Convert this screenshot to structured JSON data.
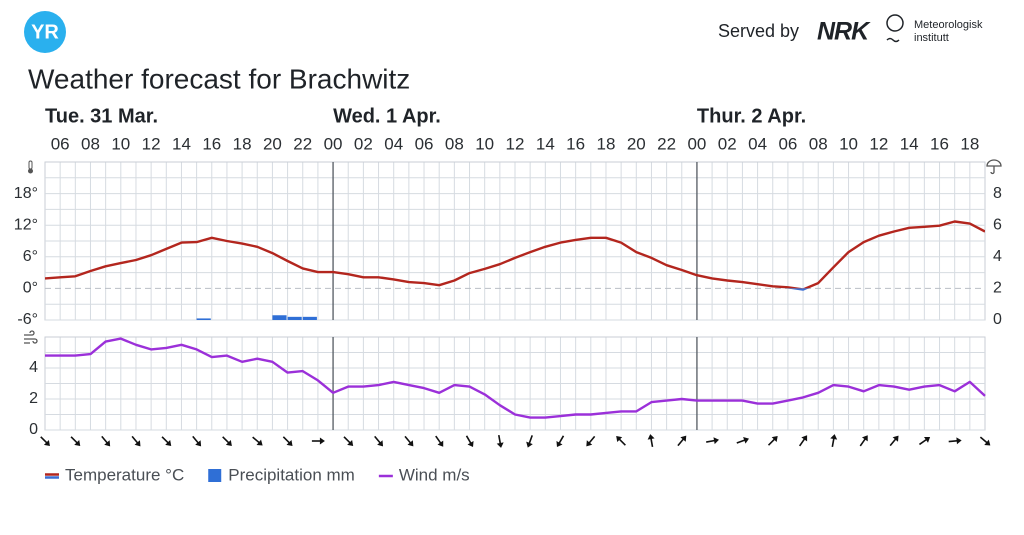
{
  "header": {
    "logo": "YR",
    "served_by": "Served by",
    "partner": "NRK",
    "institute": [
      "Meteorologisk",
      "institutt"
    ]
  },
  "chart_data": [
    {
      "type": "line",
      "title": "Weather forecast for Brachwitz",
      "day_labels": [
        "Tue. 31 Mar.",
        "Wed. 1 Apr.",
        "Thur. 2 Apr."
      ],
      "categories": [
        null,
        "06",
        null,
        "08",
        null,
        "10",
        null,
        "12",
        null,
        "14",
        null,
        "16",
        null,
        "18",
        null,
        "20",
        null,
        "22",
        null,
        "00",
        null,
        "02",
        null,
        "04",
        null,
        "06",
        null,
        "08",
        null,
        "10",
        null,
        "12",
        null,
        "14",
        null,
        "16",
        null,
        "18",
        null,
        "20",
        null,
        "22",
        null,
        "00",
        null,
        "02",
        null,
        "04",
        null,
        "06",
        null,
        "08",
        null,
        "10",
        null,
        "12",
        null,
        "14",
        null,
        "16",
        null,
        "18",
        null
      ],
      "series": [
        {
          "name": "Temperature °C",
          "type": "line",
          "color": "#b3261e",
          "color_below_zero": "#3b6fd4",
          "values": [
            1.9,
            2.1,
            2.3,
            3.3,
            4.2,
            4.8,
            5.4,
            6.3,
            7.5,
            8.7,
            8.8,
            9.6,
            9.0,
            8.5,
            7.9,
            6.7,
            5.2,
            3.8,
            3.1,
            3.1,
            2.7,
            2.1,
            2.1,
            1.7,
            1.2,
            1.0,
            0.6,
            1.5,
            2.9,
            3.7,
            4.6,
            5.8,
            6.9,
            7.9,
            8.7,
            9.2,
            9.6,
            9.6,
            8.7,
            6.9,
            5.8,
            4.4,
            3.5,
            2.5,
            1.9,
            1.5,
            1.2,
            0.8,
            0.4,
            0.2,
            -0.2,
            1.0,
            4.0,
            6.9,
            8.8,
            10.0,
            10.8,
            11.5,
            11.7,
            11.9,
            12.7,
            12.3,
            10.8
          ]
        },
        {
          "name": "Precipitation mm",
          "type": "bar",
          "axis": "y2",
          "color": "#2f6fd6",
          "values": [
            0,
            0,
            0,
            0,
            0,
            0,
            0,
            0,
            0,
            0,
            0.1,
            0,
            0,
            0,
            0,
            0.3,
            0.2,
            0.2,
            0,
            0,
            0,
            0,
            0,
            0,
            0,
            0,
            0,
            0,
            0,
            0,
            0,
            0,
            0,
            0,
            0,
            0,
            0,
            0,
            0,
            0,
            0,
            0,
            0,
            0,
            0,
            0,
            0,
            0,
            0,
            0,
            0,
            0,
            0,
            0,
            0,
            0,
            0,
            0,
            0,
            0,
            0,
            0,
            0
          ]
        }
      ],
      "ylim": [
        -6,
        24
      ],
      "yticks": [
        {
          "value": -6,
          "label": "-6°"
        },
        {
          "value": 0,
          "label": "0°"
        },
        {
          "value": 6,
          "label": "6°"
        },
        {
          "value": 12,
          "label": "12°"
        },
        {
          "value": 18,
          "label": "18°"
        }
      ],
      "y2lim": [
        0,
        10
      ],
      "y2ticks": [
        0,
        2,
        4,
        6,
        8
      ],
      "grid": true,
      "legend": "bottom-left"
    },
    {
      "type": "line",
      "series": [
        {
          "name": "Wind m/s",
          "type": "line",
          "color": "#9b30d9",
          "values": [
            4.8,
            4.8,
            4.8,
            4.9,
            5.7,
            5.9,
            5.5,
            5.2,
            5.3,
            5.5,
            5.2,
            4.7,
            4.8,
            4.4,
            4.6,
            4.4,
            3.7,
            3.8,
            3.2,
            2.4,
            2.8,
            2.8,
            2.9,
            3.1,
            2.9,
            2.7,
            2.4,
            2.9,
            2.8,
            2.3,
            1.6,
            1.0,
            0.8,
            0.8,
            0.9,
            1.0,
            1.0,
            1.1,
            1.2,
            1.2,
            1.8,
            1.9,
            2.0,
            1.9,
            1.9,
            1.9,
            1.9,
            1.7,
            1.7,
            1.9,
            2.1,
            2.4,
            2.9,
            2.8,
            2.5,
            2.9,
            2.8,
            2.6,
            2.8,
            2.9,
            2.5,
            3.1,
            2.2
          ]
        }
      ],
      "wind_direction": [
        315,
        315,
        320,
        320,
        315,
        320,
        315,
        310,
        315,
        270,
        315,
        320,
        320,
        325,
        330,
        350,
        20,
        30,
        40,
        135,
        170,
        220,
        260,
        250,
        225,
        215,
        190,
        215,
        220,
        235,
        265,
        310
      ],
      "ylim": [
        0,
        6
      ],
      "yticks": [
        0,
        2,
        4
      ],
      "grid": true
    }
  ]
}
